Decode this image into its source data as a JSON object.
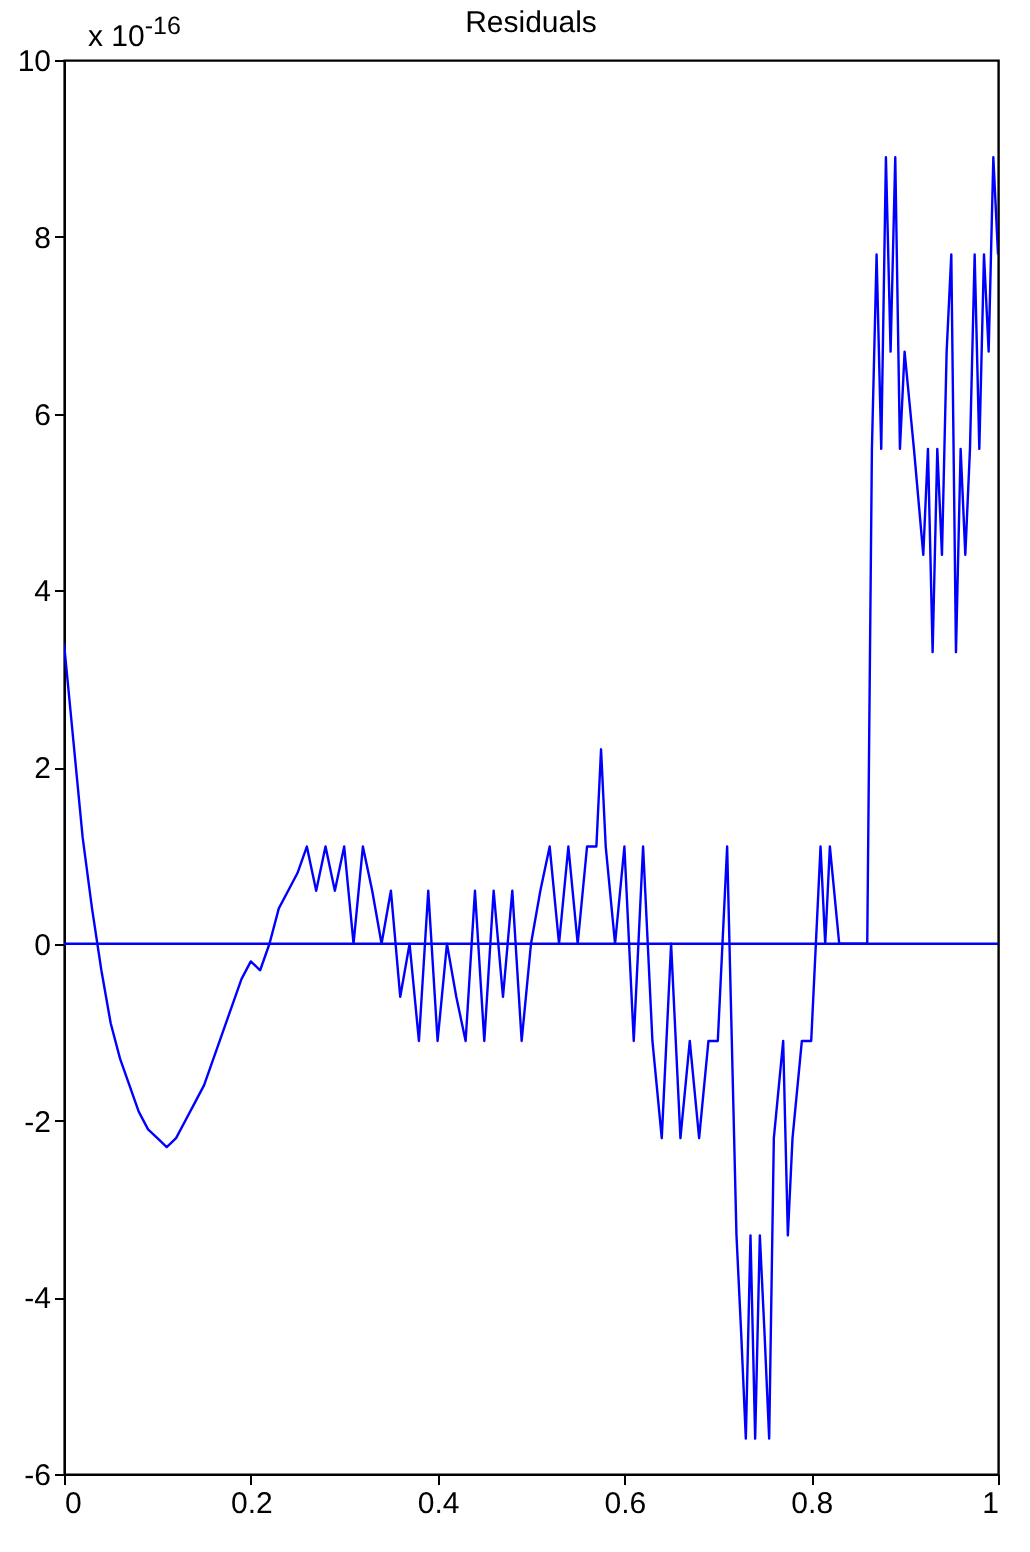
{
  "chart_data": {
    "type": "line",
    "title": "Residuals",
    "annotations": [
      "x 10$^{-16}$"
    ],
    "x": [
      0,
      0.01,
      0.02,
      0.03,
      0.04,
      0.05,
      0.06,
      0.07,
      0.08,
      0.09,
      0.1,
      0.11,
      0.12,
      0.13,
      0.14,
      0.15,
      0.16,
      0.17,
      0.18,
      0.19,
      0.2,
      0.21,
      0.22,
      0.23,
      0.24,
      0.25,
      0.26,
      0.27,
      0.28,
      0.29,
      0.3,
      0.31,
      0.32,
      0.33,
      0.34,
      0.35,
      0.36,
      0.37,
      0.38,
      0.39,
      0.4,
      0.41,
      0.42,
      0.43,
      0.44,
      0.45,
      0.46,
      0.47,
      0.48,
      0.49,
      0.5,
      0.51,
      0.52,
      0.53,
      0.54,
      0.55,
      0.56,
      0.57,
      0.575,
      0.58,
      0.59,
      0.6,
      0.61,
      0.62,
      0.63,
      0.64,
      0.65,
      0.66,
      0.67,
      0.68,
      0.69,
      0.7,
      0.71,
      0.715,
      0.72,
      0.725,
      0.73,
      0.735,
      0.74,
      0.745,
      0.75,
      0.755,
      0.76,
      0.77,
      0.775,
      0.78,
      0.79,
      0.8,
      0.81,
      0.815,
      0.82,
      0.83,
      0.84,
      0.85,
      0.86,
      0.865,
      0.87,
      0.875,
      0.88,
      0.885,
      0.89,
      0.895,
      0.9,
      0.91,
      0.92,
      0.925,
      0.93,
      0.935,
      0.94,
      0.945,
      0.95,
      0.955,
      0.96,
      0.965,
      0.97,
      0.975,
      0.98,
      0.985,
      0.99,
      0.995,
      1
    ],
    "series": [
      {
        "color": "#0000ff",
        "values": [
          3.4,
          2.3,
          1.2,
          0.4,
          -0.3,
          -0.9,
          -1.3,
          -1.6,
          -1.9,
          -2.1,
          -2.2,
          -2.3,
          -2.2,
          -2,
          -1.8,
          -1.6,
          -1.3,
          -1,
          -0.7,
          -0.4,
          -0.2,
          -0.3,
          0,
          0.4,
          0.6,
          0.8,
          1.1,
          0.6,
          1.1,
          0.6,
          1.1,
          0,
          1.1,
          0.6,
          0,
          0.6,
          -0.6,
          0,
          -1.1,
          0.6,
          -1.1,
          0,
          -0.6,
          -1.1,
          0.6,
          -1.1,
          0.6,
          -0.6,
          0.6,
          -1.1,
          0,
          0.6,
          1.1,
          0,
          1.1,
          0,
          1.1,
          1.1,
          2.2,
          1.1,
          0,
          1.1,
          -1.1,
          1.1,
          -1.1,
          -2.2,
          0,
          -2.2,
          -1.1,
          -2.2,
          -1.1,
          -1.1,
          1.1,
          -1.1,
          -3.3,
          -4.4,
          -5.6,
          -3.3,
          -5.6,
          -3.3,
          -4.4,
          -5.6,
          -2.2,
          -1.1,
          -3.3,
          -2.2,
          -1.1,
          -1.1,
          1.1,
          0,
          1.1,
          0,
          0,
          0,
          0,
          5.6,
          7.8,
          5.6,
          8.9,
          6.7,
          8.9,
          5.6,
          6.7,
          5.6,
          4.4,
          5.6,
          3.3,
          5.6,
          4.4,
          6.7,
          7.8,
          3.3,
          5.6,
          4.4,
          5.6,
          7.8,
          5.6,
          7.8,
          6.7,
          8.9,
          7.8
        ]
      }
    ],
    "xlim": [
      0,
      1
    ],
    "xticks": [
      0,
      0.2,
      0.4,
      0.6,
      0.8,
      1
    ],
    "ylim": [
      -6,
      10
    ],
    "yticks": [
      -6,
      -4,
      -2,
      0,
      2,
      4,
      6,
      8,
      10
    ],
    "ref_lines": [
      {
        "axis": "y",
        "value": 0,
        "color": "#0000ff"
      }
    ]
  }
}
